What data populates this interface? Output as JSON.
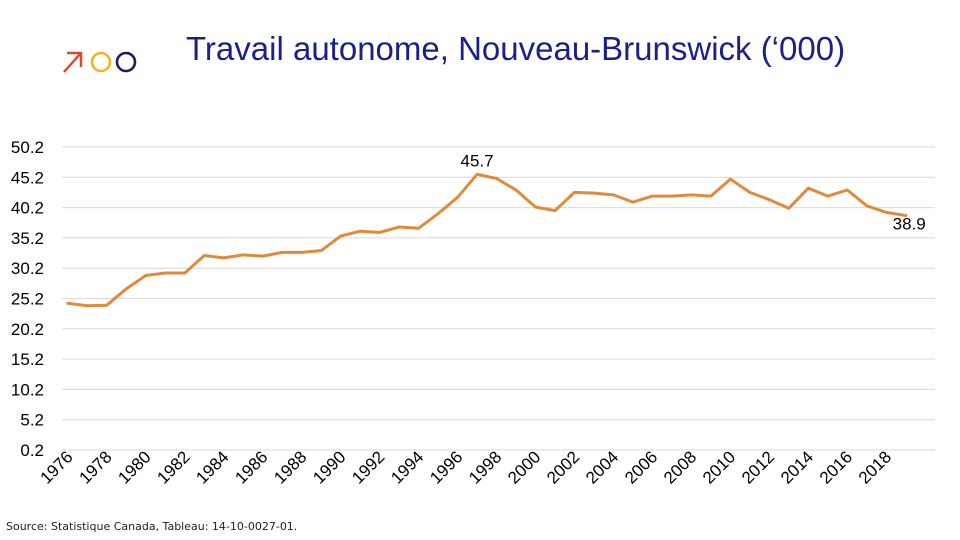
{
  "header": {
    "title": "Travail autonome, Nouveau-Brunswick (‘000)"
  },
  "logo": {
    "icon": "arrow-circles-logo",
    "colors": [
      "#e8432a",
      "#f2b51c",
      "#1a1f5c"
    ]
  },
  "source": "Source: Statistique Canada, Tableau: 14-10-0027-01.",
  "chart_data": {
    "type": "line",
    "title": "Travail autonome, Nouveau-Brunswick (‘000)",
    "xlabel": "",
    "ylabel": "",
    "ylim": [
      0.2,
      50.2
    ],
    "yticks": [
      "50.2",
      "45.2",
      "40.2",
      "35.2",
      "30.2",
      "25.2",
      "20.2",
      "15.2",
      "10.2",
      "5.2",
      "0.2"
    ],
    "ytick_values": [
      50.2,
      45.2,
      40.2,
      35.2,
      30.2,
      25.2,
      20.2,
      15.2,
      10.2,
      5.2,
      0.2
    ],
    "xtick_labels": [
      "1976",
      "1978",
      "1980",
      "1982",
      "1984",
      "1986",
      "1988",
      "1990",
      "1992",
      "1994",
      "1996",
      "1998",
      "2000",
      "2002",
      "2004",
      "2006",
      "2008",
      "2010",
      "2012",
      "2014",
      "2016",
      "2018"
    ],
    "grid": true,
    "line_color": "#e08a3c",
    "x": [
      1976,
      1977,
      1978,
      1979,
      1980,
      1981,
      1982,
      1983,
      1984,
      1985,
      1986,
      1987,
      1988,
      1989,
      1990,
      1991,
      1992,
      1993,
      1994,
      1995,
      1996,
      1997,
      1998,
      1999,
      2000,
      2001,
      2002,
      2003,
      2004,
      2005,
      2006,
      2007,
      2008,
      2009,
      2010,
      2011,
      2012,
      2013,
      2014,
      2015,
      2016,
      2017,
      2018,
      2019
    ],
    "values": [
      24.4,
      24.0,
      24.1,
      26.8,
      29.0,
      29.4,
      29.4,
      32.3,
      31.9,
      32.4,
      32.2,
      32.8,
      32.8,
      33.1,
      35.5,
      36.3,
      36.1,
      37.0,
      36.8,
      39.2,
      41.9,
      45.7,
      45.0,
      43.1,
      40.3,
      39.7,
      42.7,
      42.6,
      42.3,
      41.1,
      42.1,
      42.1,
      42.3,
      42.1,
      44.9,
      42.7,
      41.5,
      40.1,
      43.4,
      42.1,
      43.1,
      40.5,
      39.4,
      38.9
    ],
    "annotations": [
      {
        "text": "45.7",
        "x": 1997,
        "y": 45.7
      },
      {
        "text": "38.9",
        "x": 2019,
        "y": 38.9
      }
    ]
  }
}
